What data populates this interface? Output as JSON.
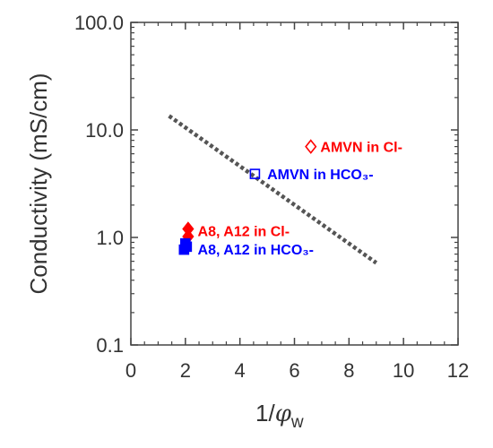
{
  "chart_data": {
    "type": "scatter",
    "ylabel": "Conductivity (mS/cm)",
    "xlabel": {
      "prefix": "1/",
      "symbol": "φ",
      "subscript": "w"
    },
    "xlim": [
      0,
      12
    ],
    "ylim": [
      0.1,
      100.0
    ],
    "yscale": "log",
    "xticks": [
      0,
      2,
      4,
      6,
      8,
      10,
      12
    ],
    "xtick_labels": [
      "0",
      "2",
      "4",
      "6",
      "8",
      "10",
      "12"
    ],
    "yticks": [
      0.1,
      1.0,
      10.0,
      100.0
    ],
    "ytick_labels": [
      "0.1",
      "1.0",
      "10.0",
      "100.0"
    ],
    "grid": false,
    "colors": {
      "red": "#ff0000",
      "blue": "#0000ff",
      "trend": "#555555",
      "axis": "#444444"
    },
    "series": [
      {
        "marker": "diamond-open",
        "color": "#ff0000",
        "points": [
          {
            "x": 6.6,
            "y": 7.0
          }
        ]
      },
      {
        "marker": "square-open",
        "color": "#0000ff",
        "points": [
          {
            "x": 4.55,
            "y": 3.9
          }
        ]
      },
      {
        "marker": "diamond-filled",
        "color": "#ff0000",
        "points": [
          {
            "x": 2.1,
            "y": 1.2
          },
          {
            "x": 2.1,
            "y": 1.02
          }
        ]
      },
      {
        "marker": "square-filled",
        "color": "#0000ff",
        "points": [
          {
            "x": 1.95,
            "y": 0.77
          },
          {
            "x": 2.05,
            "y": 0.82
          },
          {
            "x": 2.0,
            "y": 0.88
          }
        ]
      }
    ],
    "trendline": {
      "x": [
        1.4,
        9.0
      ],
      "y": [
        13.5,
        0.58
      ]
    },
    "annotations": [
      {
        "text": "AMVN in Cl-",
        "x": 6.95,
        "y": 7.0,
        "color": "#ff0000"
      },
      {
        "text": "AMVN in HCO₃-",
        "x": 5.0,
        "y": 3.9,
        "color": "#0000ff"
      },
      {
        "text": "A8, A12 in Cl-",
        "x": 2.45,
        "y": 1.15,
        "color": "#ff0000"
      },
      {
        "text": "A8, A12 in HCO₃-",
        "x": 2.45,
        "y": 0.78,
        "color": "#0000ff"
      }
    ]
  }
}
